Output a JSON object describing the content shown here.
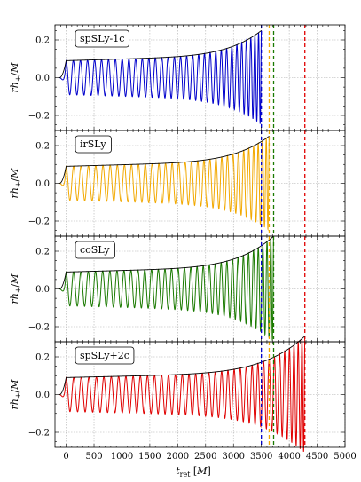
{
  "chart_data": {
    "type": "line",
    "xlabel": "t_ret [M]",
    "ylabel": "rh_+/M",
    "xlim": [
      -200,
      5000
    ],
    "ylim": [
      -0.28,
      0.28
    ],
    "x_ticks": [
      "0",
      "500",
      "1000",
      "1500",
      "2000",
      "2500",
      "3000",
      "3500",
      "4000",
      "4500",
      "5000"
    ],
    "y_ticks": [
      "−0.2",
      "0.0",
      "0.2"
    ],
    "grid": true,
    "panels": [
      {
        "label": "spSLy-1c",
        "color": "#0000cc",
        "merger_time": 3500,
        "peak_amplitude": 0.22,
        "start_cycle_time": 0,
        "cycles": 33
      },
      {
        "label": "irSLy",
        "color": "#f2a900",
        "merger_time": 3640,
        "peak_amplitude": 0.22,
        "start_cycle_time": 0,
        "cycles": 33
      },
      {
        "label": "coSLy",
        "color": "#1a7a00",
        "merger_time": 3720,
        "peak_amplitude": 0.25,
        "start_cycle_time": 0,
        "cycles": 34
      },
      {
        "label": "spSLy+2c",
        "color": "#e00000",
        "merger_time": 4280,
        "peak_amplitude": 0.28,
        "start_cycle_time": 0,
        "cycles": 38
      }
    ],
    "vertical_lines": [
      {
        "x": 3500,
        "color": "#0000cc"
      },
      {
        "x": 3640,
        "color": "#f2a900"
      },
      {
        "x": 3720,
        "color": "#1a7a00"
      },
      {
        "x": 4280,
        "color": "#e00000"
      }
    ]
  }
}
